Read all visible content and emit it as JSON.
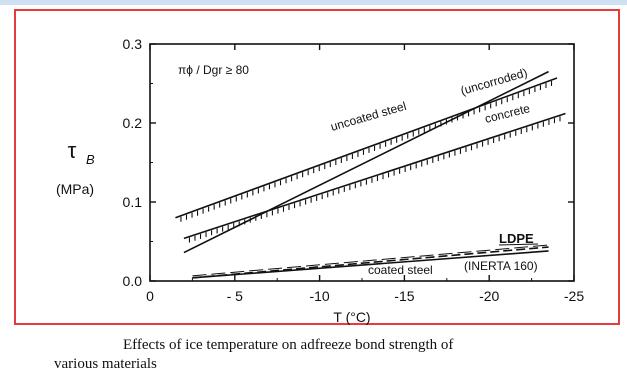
{
  "caption": {
    "line1": "Effects of ice temperature on adfreeze bond strength of",
    "line2": "various materials"
  },
  "colors": {
    "frame_border": "#e53b3b",
    "ink": "#111111",
    "top_strip": "#cfe0f2"
  },
  "chart_data": {
    "type": "line",
    "title": "",
    "annotation": "πϕ / Dgr ≥ 80",
    "xlabel": "T (°C)",
    "ylabel": "τ",
    "ylabel_sub": "B",
    "yunit": "(MPa)",
    "xlim": [
      0,
      -25
    ],
    "ylim": [
      0,
      0.3
    ],
    "x_ticks": [
      0,
      -5,
      -10,
      -15,
      -20,
      -25
    ],
    "x_tick_labels": [
      "0",
      "- 5",
      "-10",
      "-15",
      "-20",
      "-25"
    ],
    "y_ticks": [
      0.0,
      0.1,
      0.2,
      0.3
    ],
    "y_tick_labels": [
      "0.0",
      "0.1",
      "0.2",
      "0.3"
    ],
    "grid": false,
    "series": [
      {
        "name": "uncoated steel (uncorroded)",
        "label": "uncoated steel",
        "label_extra": "(uncorroded)",
        "style": "hatched",
        "x": [
          -1.5,
          -24
        ],
        "y": [
          0.08,
          0.257
        ]
      },
      {
        "name": "concrete",
        "label": "concrete",
        "style": "hatched",
        "x": [
          -2,
          -24.5
        ],
        "y": [
          0.054,
          0.212
        ]
      },
      {
        "name": "steep line",
        "label": "",
        "style": "solid",
        "x": [
          -2,
          -23.5
        ],
        "y": [
          0.036,
          0.265
        ]
      },
      {
        "name": "LDPE",
        "label": "LDPE",
        "style": "dashed",
        "x": [
          -2.5,
          -23.5
        ],
        "y": [
          0.004,
          0.043
        ]
      },
      {
        "name": "coated steel (INERTA 160)",
        "label": "coated steel",
        "label_extra": "(INERTA 160)",
        "style": "solid",
        "x": [
          -2.5,
          -23.5
        ],
        "y": [
          0.004,
          0.038
        ]
      }
    ]
  }
}
